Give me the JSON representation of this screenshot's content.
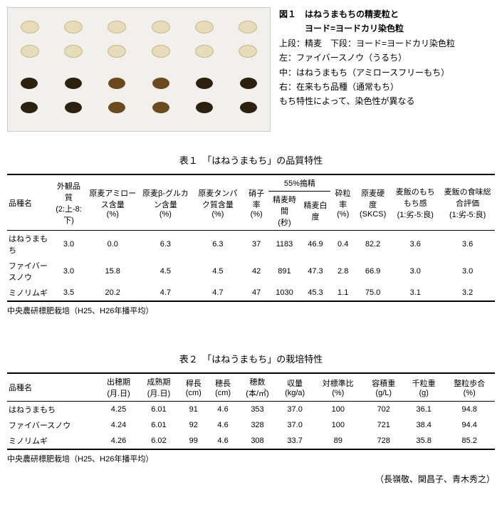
{
  "figure": {
    "title_line1": "図１　はねうまもちの精麦粒と",
    "title_line2": "ヨード=ヨードカリ染色粒",
    "line1": "上段：精麦　下段：ヨード=ヨードカリ染色粒",
    "line2": "左：ファイバースノウ（うるち）",
    "line3": "中：はねうまもち（アミロースフリーもち）",
    "line4": "右：在来もち品種（通常もち）",
    "line5": "もち特性によって、染色性が異なる"
  },
  "table1": {
    "title": "表１　「はねうまもち」の品質特性",
    "headers": {
      "c0": "品種名",
      "c1a": "外観品質",
      "c1b": "(2:上-8:下)",
      "c2a": "原麦アミロース含量",
      "c2b": "(%)",
      "c3a": "原麦β-グルカン含量",
      "c3b": "(%)",
      "c4a": "原麦タンパク質含量",
      "c4b": "(%)",
      "c5a": "硝子率",
      "c5b": "(%)",
      "c55": "55%搗精",
      "c6a": "精麦時間",
      "c6b": "(秒)",
      "c7a": "精麦白度",
      "c8a": "砕粒率",
      "c8b": "(%)",
      "c9a": "原麦硬度",
      "c9b": "(SKCS)",
      "c10a": "麦飯のもちもち感",
      "c10b": "(1:劣-5:良)",
      "c11a": "麦飯の食味総合評価",
      "c11b": "(1:劣-5:良)"
    },
    "rows": [
      {
        "name": "はねうまもち",
        "c1": "3.0",
        "c2": "0.0",
        "c3": "6.3",
        "c4": "6.3",
        "c5": "37",
        "c6": "1183",
        "c7": "46.9",
        "c8": "0.4",
        "c9": "82.2",
        "c10": "3.6",
        "c11": "3.6"
      },
      {
        "name": "ファイバースノウ",
        "c1": "3.0",
        "c2": "15.8",
        "c3": "4.5",
        "c4": "4.5",
        "c5": "42",
        "c6": "891",
        "c7": "47.3",
        "c8": "2.8",
        "c9": "66.9",
        "c10": "3.0",
        "c11": "3.0"
      },
      {
        "name": "ミノリムギ",
        "c1": "3.5",
        "c2": "20.2",
        "c3": "4.7",
        "c4": "4.7",
        "c5": "47",
        "c6": "1030",
        "c7": "45.3",
        "c8": "1.1",
        "c9": "75.0",
        "c10": "3.1",
        "c11": "3.2"
      }
    ],
    "note": "中央農研標肥栽培（H25、H26年播平均）"
  },
  "table2": {
    "title": "表２　「はねうまもち」の栽培特性",
    "headers": {
      "c0": "品種名",
      "c1a": "出穂期",
      "c1b": "(月.日)",
      "c2a": "成熟期",
      "c2b": "(月.日)",
      "c3a": "稈長",
      "c3b": "(cm)",
      "c4a": "穂長",
      "c4b": "(cm)",
      "c5a": "穂数",
      "c5b": "(本/㎡)",
      "c6a": "収量",
      "c6b": "(kg/a)",
      "c7a": "対標準比",
      "c7b": "(%)",
      "c8a": "容積重",
      "c8b": "(g/L)",
      "c9a": "千粒重",
      "c9b": "(g)",
      "c10a": "整粒歩合",
      "c10b": "(%)"
    },
    "rows": [
      {
        "name": "はねうまもち",
        "c1": "4.25",
        "c2": "6.01",
        "c3": "91",
        "c4": "4.6",
        "c5": "353",
        "c6": "37.0",
        "c7": "100",
        "c8": "702",
        "c9": "36.1",
        "c10": "94.8"
      },
      {
        "name": "ファイバースノウ",
        "c1": "4.24",
        "c2": "6.01",
        "c3": "92",
        "c4": "4.6",
        "c5": "328",
        "c6": "37.0",
        "c7": "100",
        "c8": "721",
        "c9": "38.4",
        "c10": "94.4"
      },
      {
        "name": "ミノリムギ",
        "c1": "4.26",
        "c2": "6.02",
        "c3": "99",
        "c4": "4.6",
        "c5": "308",
        "c6": "33.7",
        "c7": "89",
        "c8": "728",
        "c9": "35.8",
        "c10": "85.2"
      }
    ],
    "note": "中央農研標肥栽培（H25、H26年播平均）",
    "authors": "（長嶺敬、関昌子、青木秀之）"
  }
}
